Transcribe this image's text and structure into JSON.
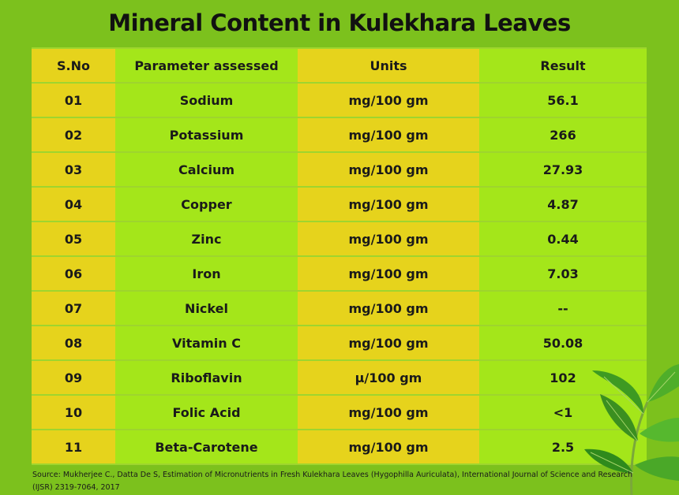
{
  "title": "Mineral Content in Kulekhara Leaves",
  "table": {
    "header": [
      "S.No",
      "Parameter assessed",
      "Units",
      "Result"
    ],
    "rows": [
      [
        "01",
        "Sodium",
        "mg/100 gm",
        "56.1"
      ],
      [
        "02",
        "Potassium",
        "mg/100 gm",
        "266"
      ],
      [
        "03",
        "Calcium",
        "mg/100 gm",
        "27.93"
      ],
      [
        "04",
        "Copper",
        "mg/100 gm",
        "4.87"
      ],
      [
        "05",
        "Zinc",
        "mg/100 gm",
        "0.44"
      ],
      [
        "06",
        "Iron",
        "mg/100 gm",
        "7.03"
      ],
      [
        "07",
        "Nickel",
        "mg/100 gm",
        "--"
      ],
      [
        "08",
        "Vitamin C",
        "mg/100 gm",
        "50.08"
      ],
      [
        "09",
        "Riboflavin",
        "μ/100 gm",
        "102"
      ],
      [
        "10",
        "Folic Acid",
        "mg/100 gm",
        "<1"
      ],
      [
        "11",
        "Beta-Carotene",
        "mg/100 gm",
        "2.5"
      ]
    ]
  },
  "source": [
    "Source: Mukherjee C., Datta De S, Estimation of Micronutrients in Fresh Kulekhara Leaves (Hygophilla Auriculata), International Journal of Science and Research",
    "(IJSR) 2319-7064, 2017"
  ]
}
